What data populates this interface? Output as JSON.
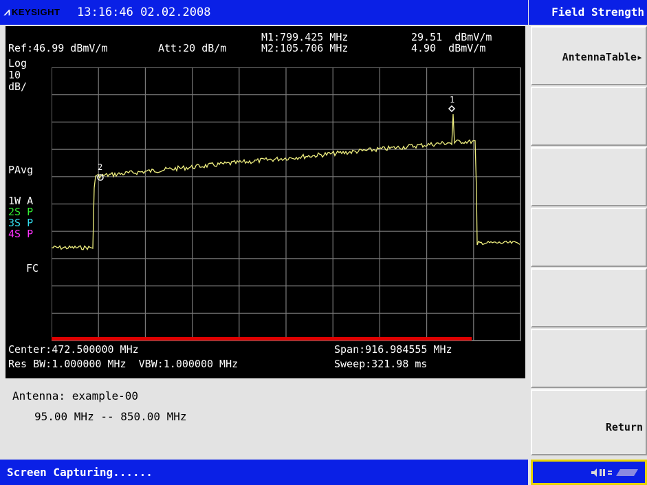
{
  "header": {
    "brand": "KEYSIGHT",
    "datetime": "13:16:46  02.02.2008"
  },
  "menu": {
    "title": "Field Strength",
    "softkeys": [
      "AntennaTable▸",
      "",
      "",
      "",
      "",
      "",
      "Return"
    ]
  },
  "screen": {
    "ref": "Ref:46.99 dBmV/m",
    "att": "Att:20 dB/m",
    "m1": "M1:799.425 MHz",
    "m1_val": "29.51  dBmV/m",
    "m2": "M2:105.706 MHz",
    "m2_val": "4.90  dBmV/m",
    "scale": [
      "Log",
      "10",
      "dB/"
    ],
    "pavg": "PAvg",
    "traces": [
      {
        "label": "1W  A",
        "color": "#ffffff"
      },
      {
        "label": "2S  P",
        "color": "#33ee33"
      },
      {
        "label": "3S  P",
        "color": "#33ddee"
      },
      {
        "label": "4S  P",
        "color": "#ff33ff"
      }
    ],
    "fc": "FC",
    "center": "Center:472.500000 MHz",
    "span": "Span:916.984555 MHz",
    "resbw": "Res BW:1.000000 MHz  VBW:1.000000 MHz",
    "sweep": "Sweep:321.98 ms",
    "marker1_label": "1",
    "marker2_label": "2"
  },
  "info": {
    "antenna": "Antenna: example-00",
    "range": "95.00 MHz -- 850.00 MHz"
  },
  "status": {
    "text": "Screen Capturing......"
  },
  "colors": {
    "bar_blue": "#0a20e6",
    "trace_yellow": "#f0f080",
    "grid_gray": "#7a7a7a",
    "red_bar": "#e00000"
  }
}
